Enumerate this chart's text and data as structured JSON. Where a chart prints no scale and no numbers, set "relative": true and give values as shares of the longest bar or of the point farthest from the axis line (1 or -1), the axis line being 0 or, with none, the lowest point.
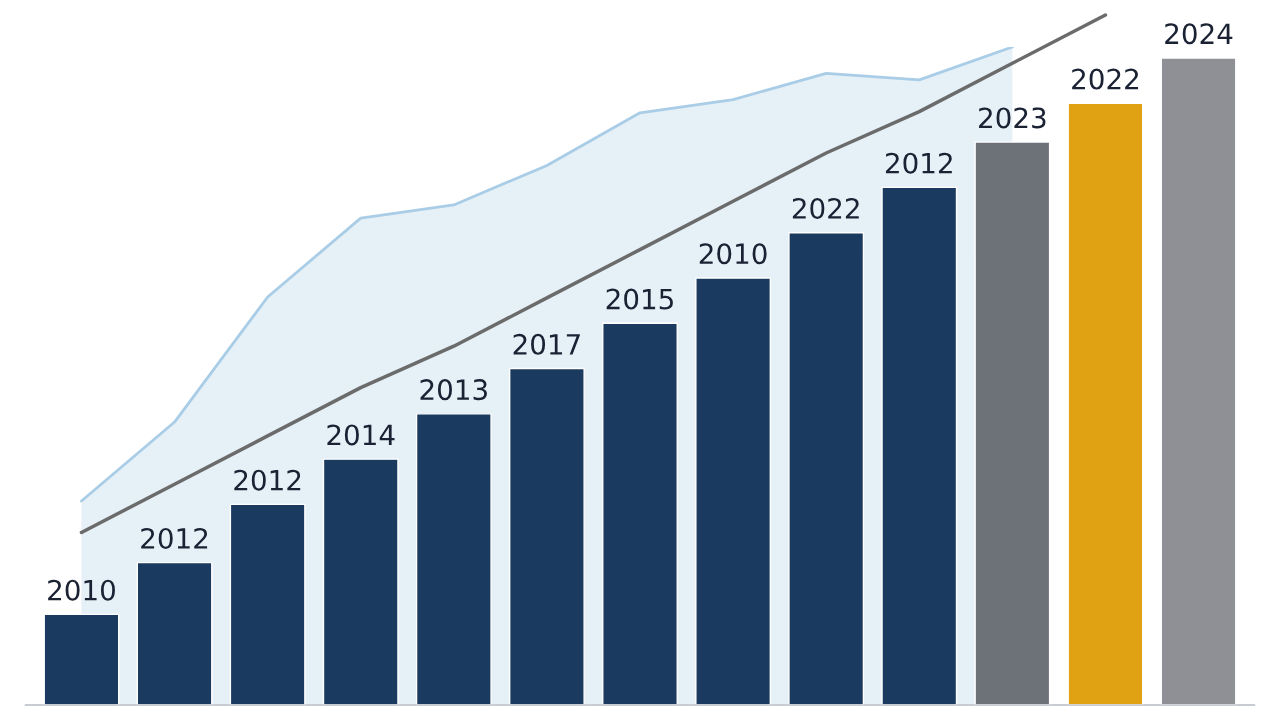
{
  "chart_data": [
    {
      "type": "area",
      "relative": true,
      "color": "#a9cde6",
      "categories": [
        null,
        null,
        null,
        null,
        null,
        null,
        null,
        null,
        null,
        null,
        null
      ],
      "values": [
        0.31,
        0.43,
        0.62,
        0.74,
        0.76,
        0.82,
        0.9,
        0.92,
        0.96,
        0.95,
        1.0
      ]
    },
    {
      "type": "line",
      "relative": true,
      "color": "#6b6b6b",
      "categories": [
        null,
        null,
        null,
        null,
        null,
        null,
        null,
        null,
        null,
        null,
        null,
        null
      ],
      "values": [
        0.25,
        0.32,
        0.39,
        0.46,
        0.52,
        0.59,
        0.66,
        0.73,
        0.8,
        0.86,
        0.93,
        1.0
      ]
    },
    {
      "type": "bar",
      "relative": true,
      "categories": [
        null,
        null,
        null,
        null,
        null,
        null,
        null,
        null,
        null,
        null,
        null,
        null,
        null
      ],
      "colors": [
        "#1b3a5f",
        "#1b3a5f",
        "#1b3a5f",
        "#1b3a5f",
        "#1b3a5f",
        "#1b3a5f",
        "#1b3a5f",
        "#1b3a5f",
        "#1b3a5f",
        "#1b3a5f",
        "#6d7178",
        "#e0a112",
        "#8e9096"
      ],
      "values": [
        0.14,
        0.22,
        0.31,
        0.38,
        0.45,
        0.52,
        0.59,
        0.66,
        0.73,
        0.8,
        0.87,
        0.93,
        1.0
      ],
      "annotations": [
        "2010",
        "2012",
        "2012",
        "2014",
        "2013",
        "2017",
        "2015",
        "2010",
        "2022",
        "2012",
        "2023",
        "2022",
        "2024"
      ]
    }
  ]
}
